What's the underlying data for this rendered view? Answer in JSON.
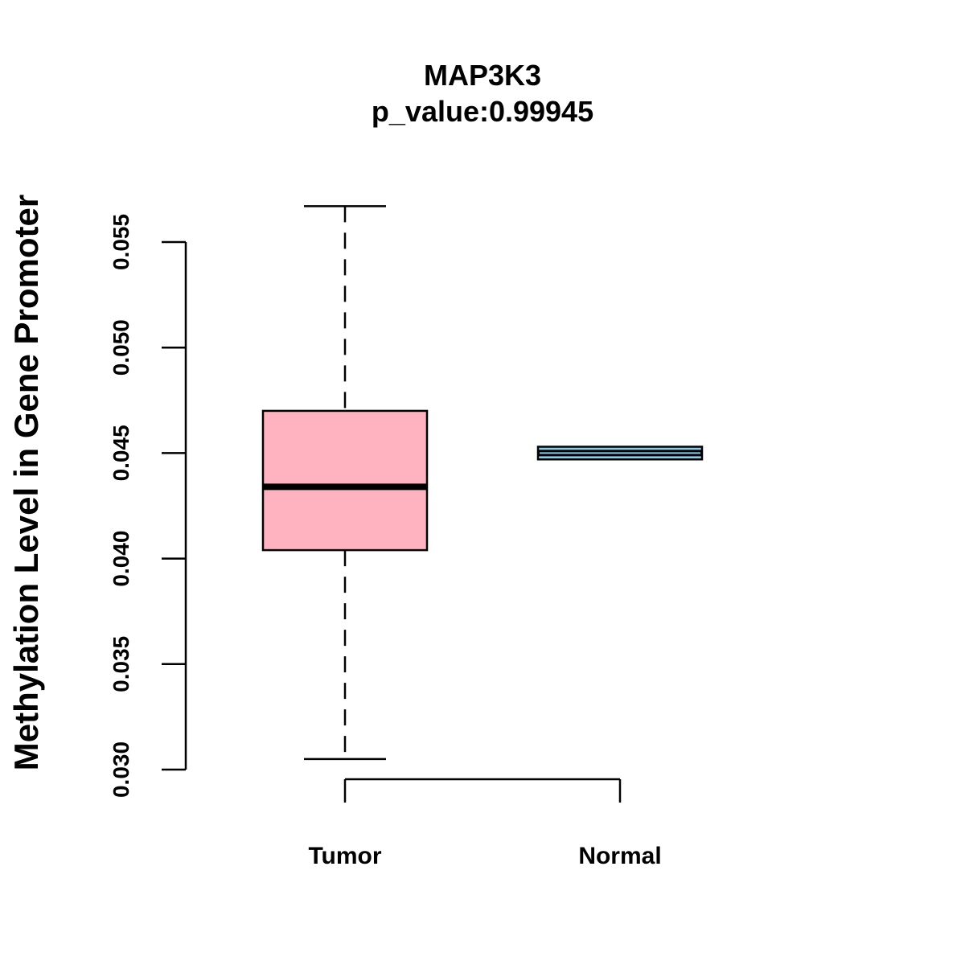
{
  "chart_data": {
    "type": "boxplot",
    "title": "MAP3K3",
    "subtitle": "p_value:0.99945",
    "xlabel": "",
    "ylabel": "Methylation Level in Gene Promoter",
    "ylim": [
      0.03,
      0.055
    ],
    "yticks": [
      "0.030",
      "0.035",
      "0.040",
      "0.045",
      "0.050",
      "0.055"
    ],
    "ytick_values": [
      0.03,
      0.035,
      0.04,
      0.045,
      0.05,
      0.055
    ],
    "categories": [
      "Tumor",
      "Normal"
    ],
    "series": [
      {
        "name": "Tumor",
        "color": "#FFB3C1",
        "whisker_low": 0.0305,
        "q1": 0.0404,
        "median": 0.0434,
        "q3": 0.047,
        "whisker_high": 0.0567
      },
      {
        "name": "Normal",
        "color": "#87CEEB",
        "whisker_low": 0.0447,
        "q1": 0.0447,
        "median": 0.045,
        "q3": 0.0453,
        "whisker_high": 0.0453
      }
    ]
  }
}
